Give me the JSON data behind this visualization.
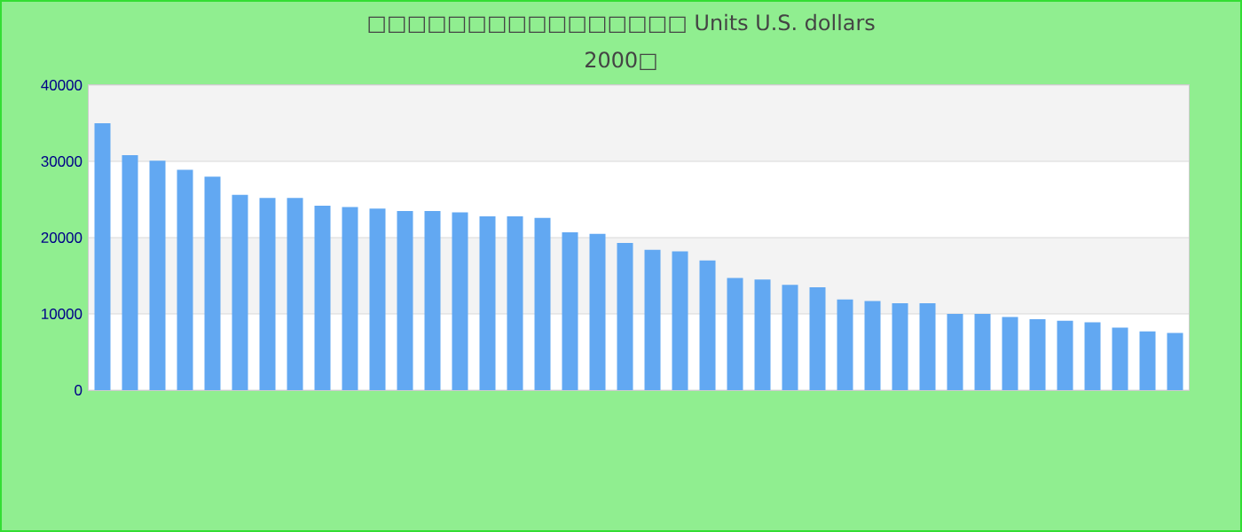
{
  "chart_data": {
    "type": "bar",
    "title": "□□□□□□□□□□□□□□□□ Units U.S. dollars",
    "subtitle": "2000□",
    "categories": [
      null,
      null,
      null,
      null,
      null,
      null,
      null,
      null,
      null,
      null,
      null,
      null,
      null,
      null,
      null,
      null,
      null,
      null,
      null,
      null,
      null,
      null,
      null,
      null,
      null,
      null,
      null,
      null,
      null,
      null,
      null,
      null,
      null,
      null,
      null,
      null,
      null,
      null,
      null,
      null
    ],
    "values": [
      35000,
      30800,
      30100,
      28900,
      28000,
      25600,
      25200,
      25200,
      24200,
      24000,
      23800,
      23500,
      23500,
      23300,
      22800,
      22800,
      22600,
      20700,
      20500,
      19300,
      18400,
      18200,
      17000,
      14700,
      14500,
      13800,
      13500,
      11900,
      11700,
      11400,
      11400,
      10000,
      10000,
      9600,
      9300,
      9100,
      8900,
      8200,
      7700,
      7500
    ],
    "color": "#62a8f2",
    "ylim": [
      0,
      40000
    ],
    "yticks": [
      0,
      10000,
      20000,
      30000,
      40000
    ],
    "grid": true
  }
}
